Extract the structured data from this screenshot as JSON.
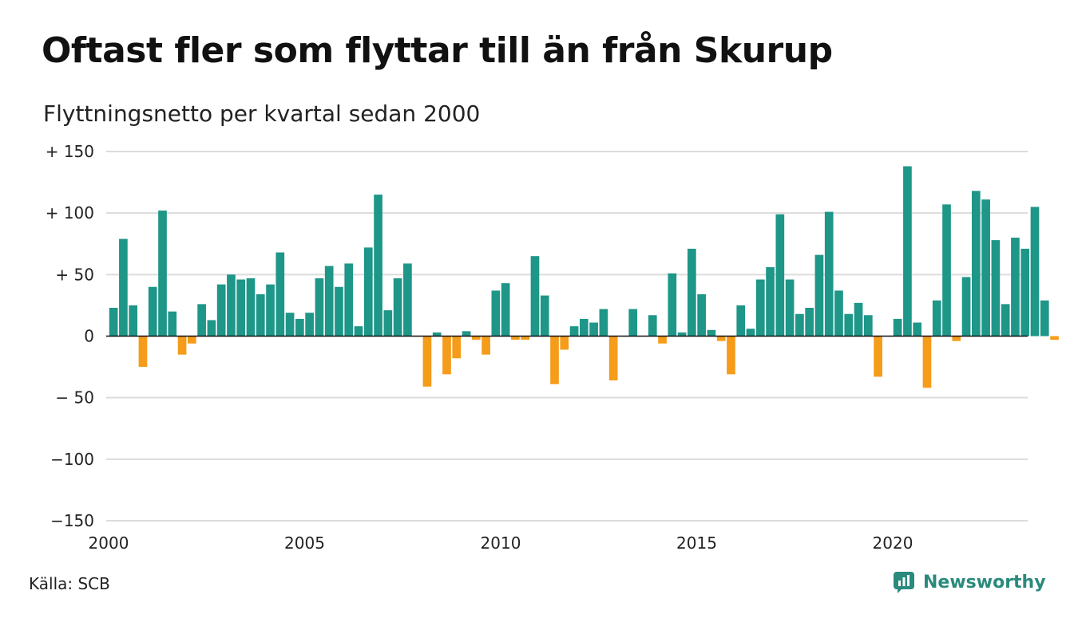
{
  "chart_data": {
    "type": "bar",
    "title": "Oftast fler som flyttar till än från Skurup",
    "subtitle": "Flyttningsnetto per kvartal sedan 2000",
    "x_start": "2000 Q1",
    "xlim": [
      2000,
      2023.6
    ],
    "ylim": [
      -150,
      150
    ],
    "y_ticks": [
      {
        "value": 150,
        "label": "+ 150"
      },
      {
        "value": 100,
        "label": "+ 100"
      },
      {
        "value": 50,
        "label": "+  50"
      },
      {
        "value": 0,
        "label": "0"
      },
      {
        "value": -50,
        "label": "− 50"
      },
      {
        "value": -100,
        "label": "−100"
      },
      {
        "value": -150,
        "label": "−150"
      }
    ],
    "x_ticks": [
      "2000",
      "2005",
      "2010",
      "2015",
      "2020"
    ],
    "grid": true,
    "colors": {
      "positive": "#1e9688",
      "negative": "#f59c1a",
      "grid": "#dcdcdc",
      "zero_line": "#111111"
    },
    "values": [
      23,
      79,
      25,
      -25,
      40,
      102,
      20,
      -15,
      -6,
      26,
      13,
      42,
      50,
      46,
      47,
      34,
      42,
      68,
      19,
      14,
      19,
      47,
      57,
      40,
      59,
      8,
      72,
      115,
      21,
      47,
      59,
      0,
      -41,
      3,
      -31,
      -18,
      4,
      -3,
      -15,
      37,
      43,
      -3,
      -3,
      65,
      33,
      -39,
      -11,
      8,
      14,
      11,
      22,
      -36,
      0,
      22,
      0,
      17,
      -6,
      51,
      3,
      71,
      34,
      5,
      -4,
      -31,
      25,
      6,
      46,
      56,
      99,
      46,
      18,
      23,
      66,
      101,
      37,
      18,
      27,
      17,
      -33,
      0,
      14,
      138,
      11,
      -42,
      29,
      107,
      -4,
      48,
      118,
      111,
      78,
      26,
      80,
      71,
      105,
      29,
      -3
    ]
  },
  "footer": {
    "source": "Källa: SCB",
    "brand": "Newsworthy"
  }
}
